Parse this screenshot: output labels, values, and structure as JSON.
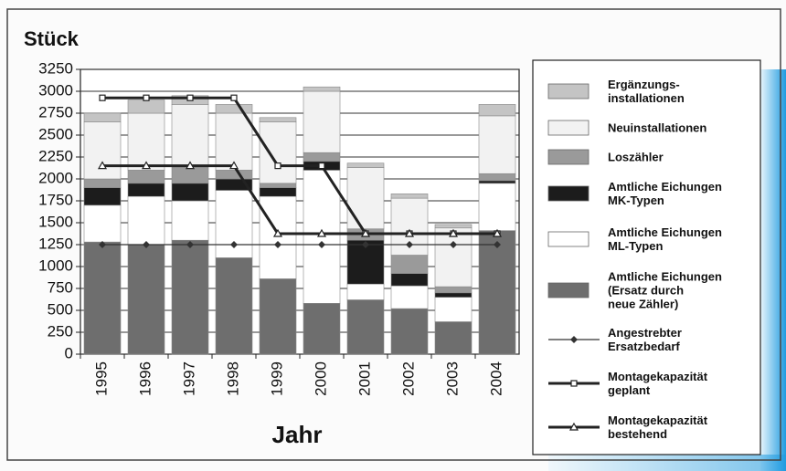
{
  "chart_data": {
    "type": "bar",
    "stacked": true,
    "title": "Stück",
    "x_label": "Jahr",
    "categories": [
      "1995",
      "1996",
      "1997",
      "1998",
      "1999",
      "2000",
      "2001",
      "2002",
      "2003",
      "2004"
    ],
    "ylim": [
      0,
      3250
    ],
    "yticks": [
      0,
      250,
      500,
      750,
      1000,
      1250,
      1500,
      1750,
      2000,
      2250,
      2500,
      2750,
      3000,
      3250
    ],
    "grid": true,
    "legend": "right",
    "series": [
      {
        "name": "Ergänzungs-\ninstallationen",
        "type": "bar",
        "color": "#c4c4c4",
        "values": [
          100,
          150,
          100,
          100,
          50,
          50,
          50,
          50,
          40,
          130
        ]
      },
      {
        "name": "Neuinstallationen",
        "type": "bar",
        "color": "#f2f2f2",
        "values": [
          650,
          650,
          700,
          650,
          700,
          700,
          700,
          650,
          670,
          660
        ]
      },
      {
        "name": "Loszähler",
        "type": "bar",
        "color": "#9a9a9a",
        "values": [
          100,
          150,
          200,
          100,
          50,
          100,
          130,
          210,
          70,
          80
        ]
      },
      {
        "name": "Amtliche Eichungen\nMK-Typen",
        "type": "bar",
        "color": "#1c1c1c",
        "values": [
          200,
          150,
          200,
          130,
          100,
          100,
          500,
          140,
          50,
          30
        ]
      },
      {
        "name": "Amtliche Eichungen\nML-Typen",
        "type": "bar",
        "color": "#ffffff",
        "values": [
          420,
          550,
          450,
          770,
          940,
          1520,
          180,
          260,
          280,
          540
        ]
      },
      {
        "name": "Amtliche Eichungen\n(Ersatz durch\nneue Zähler)",
        "type": "bar",
        "color": "#6e6e6e",
        "values": [
          1280,
          1250,
          1300,
          1100,
          860,
          580,
          620,
          520,
          370,
          1410
        ]
      },
      {
        "name": "Angestrebter\nErsatzbedarf",
        "type": "line",
        "marker": "diamond",
        "width": 1.2,
        "color": "#333333",
        "values": [
          1250,
          1250,
          1250,
          1250,
          1250,
          1250,
          1250,
          1250,
          1250,
          1250
        ]
      },
      {
        "name": "Montagekapazität\ngeplant",
        "type": "line",
        "marker": "square",
        "width": 3,
        "color": "#222222",
        "values": [
          2925,
          2925,
          2925,
          2925,
          2150,
          2150,
          1375,
          1375,
          1375,
          1375
        ]
      },
      {
        "name": "Montagekapazität\nbestehend",
        "type": "line",
        "marker": "triangle",
        "width": 3,
        "color": "#222222",
        "values": [
          2150,
          2150,
          2150,
          2150,
          1375,
          1375,
          1375,
          1375,
          1375,
          1375
        ]
      }
    ]
  }
}
